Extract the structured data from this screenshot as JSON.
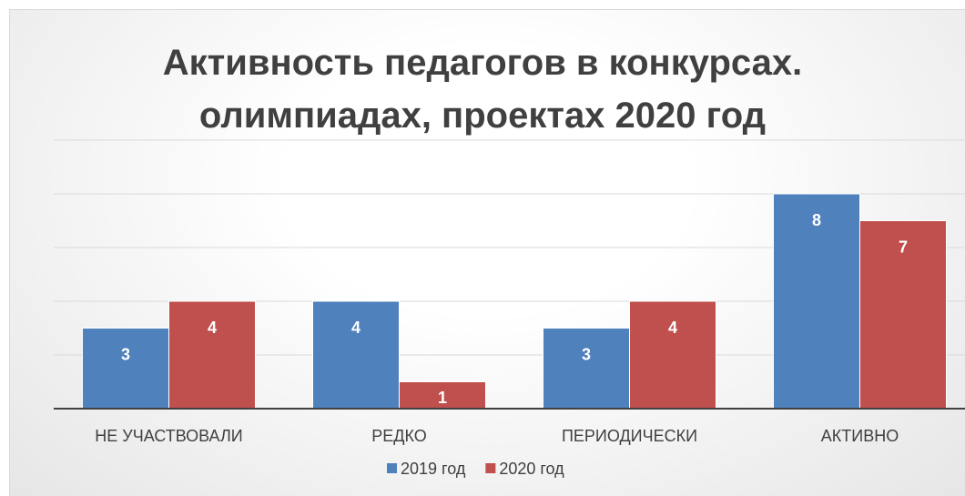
{
  "chart_data": {
    "type": "bar",
    "title": "Активность педагогов в конкурсах. олимпиадах, проектах 2020 год",
    "categories": [
      "НЕ УЧАСТВОВАЛИ",
      "РЕДКО",
      "ПЕРИОДИЧЕСКИ",
      "АКТИВНО"
    ],
    "series": [
      {
        "name": "2019 год",
        "color": "#4f81bd",
        "values": [
          3,
          4,
          3,
          8
        ]
      },
      {
        "name": "2020 год",
        "color": "#c0504d",
        "values": [
          4,
          1,
          4,
          7
        ]
      }
    ],
    "ylim": [
      0,
      10
    ],
    "yticks": [
      0,
      2,
      4,
      6,
      8,
      10
    ],
    "grid": true,
    "legend": "bottom"
  }
}
